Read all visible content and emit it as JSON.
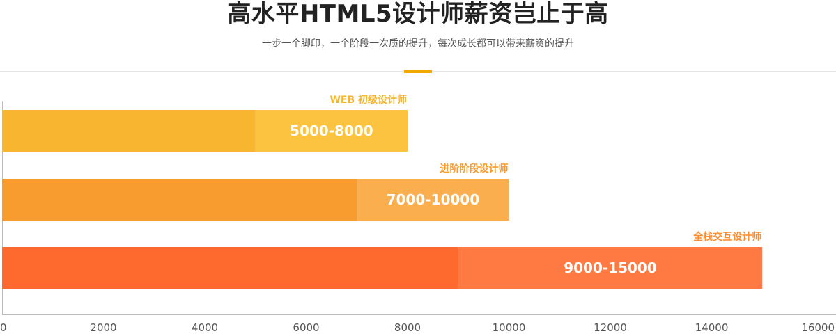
{
  "header": {
    "title": "高水平HTML5设计师薪资岂止于高",
    "subtitle": "一步一个脚印，一个阶段一次质的提升，每次成长都可以带来薪资的提升"
  },
  "colors": {
    "accent": "#f5a700",
    "axis": "#bbbbbb"
  },
  "chart_data": {
    "type": "bar",
    "orientation": "horizontal",
    "grid": false,
    "xlim": [
      0,
      16000
    ],
    "x_ticks": [
      "0",
      "2000",
      "4000",
      "6000",
      "8000",
      "10000",
      "12000",
      "14000",
      "16000"
    ],
    "series": [
      {
        "label": "WEB 初级设计师",
        "range_text": "5000-8000",
        "min": 5000,
        "max": 8000,
        "color_dark": "#f8b52f",
        "color_light": "#fbc340",
        "label_color": "#f6b42d"
      },
      {
        "label": "进阶阶段设计师",
        "range_text": "7000-10000",
        "min": 7000,
        "max": 10000,
        "color_dark": "#f99c30",
        "color_light": "#fbae4d",
        "label_color": "#f99c30"
      },
      {
        "label": "全栈交互设计师",
        "range_text": "9000-15000",
        "min": 9000,
        "max": 15000,
        "color_dark": "#fe6a2e",
        "color_light": "#ff7a42",
        "label_color": "#fd8c2f"
      }
    ]
  }
}
